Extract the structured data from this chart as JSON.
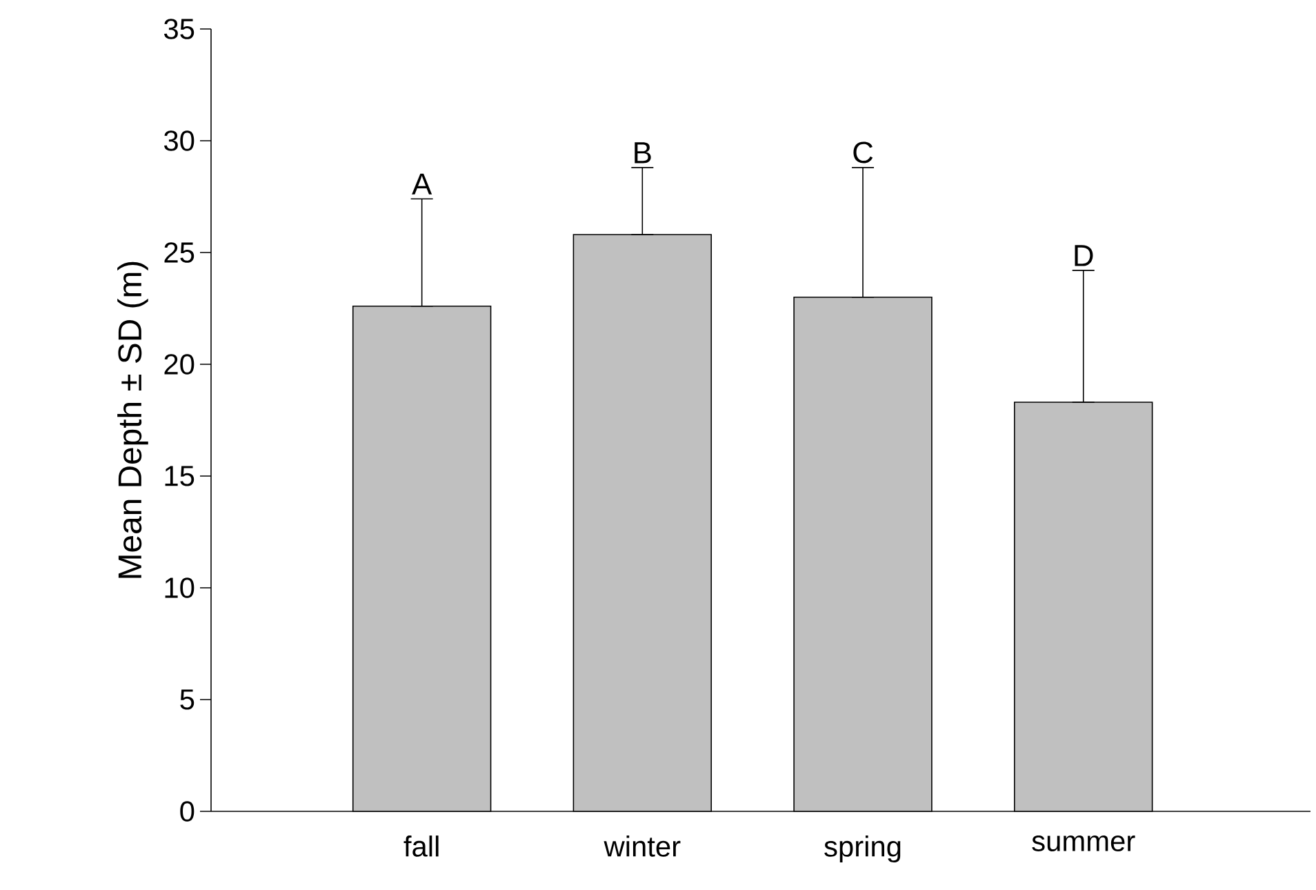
{
  "chart_data": {
    "type": "bar",
    "ylabel": "Mean Depth ± SD (m)",
    "categories": [
      "fall",
      "winter",
      "spring",
      "summer"
    ],
    "values": [
      22.6,
      25.8,
      23.0,
      18.3
    ],
    "errors": [
      [
        22.6,
        27.4
      ],
      [
        25.8,
        28.8
      ],
      [
        23.0,
        28.8
      ],
      [
        18.3,
        24.2
      ]
    ],
    "color": "#c0c0c0",
    "ylim": [
      0,
      35
    ],
    "yticks": [
      0,
      5,
      10,
      15,
      20,
      25,
      30,
      35
    ],
    "grid": false,
    "annotations": [
      "A",
      "B",
      "C",
      "D"
    ]
  }
}
